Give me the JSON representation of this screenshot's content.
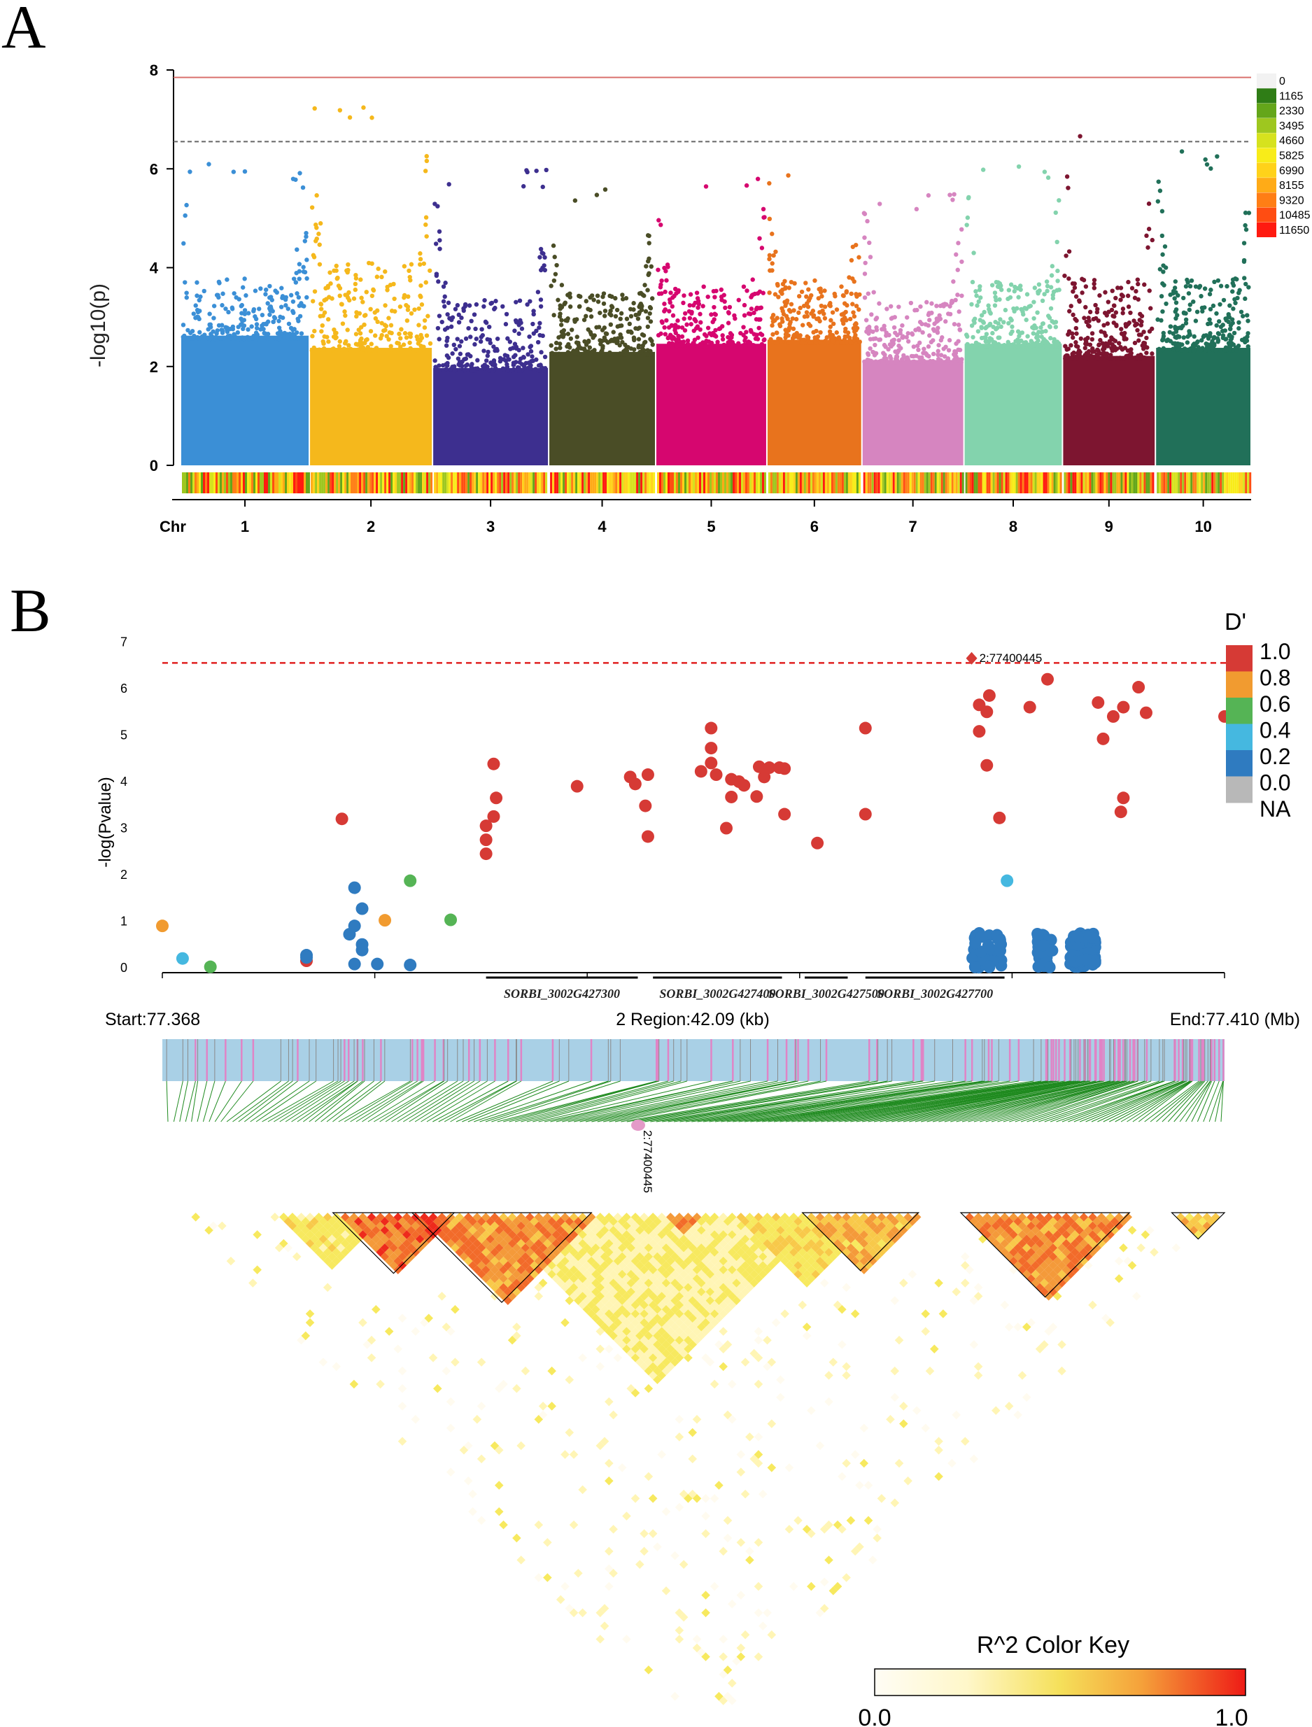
{
  "panels": {
    "a": {
      "letter": "A"
    },
    "b": {
      "letter": "B"
    }
  },
  "chart_data": [
    {
      "type": "scatter",
      "subtype": "manhattan",
      "ylabel": "-log10(p)",
      "ylim": [
        0,
        8
      ],
      "yticks": [
        "0",
        "2",
        "4",
        "6",
        "8"
      ],
      "xlabel": "Chr",
      "chromosomes": [
        {
          "name": "1",
          "color": "#3b8fd6",
          "peak": 6.1,
          "base": 3.2
        },
        {
          "name": "2",
          "color": "#f5b81c",
          "peak": 7.5,
          "base": 2.9
        },
        {
          "name": "3",
          "color": "#3d2f8f",
          "peak": 6.0,
          "base": 2.4
        },
        {
          "name": "4",
          "color": "#4a4d26",
          "peak": 5.8,
          "base": 2.8
        },
        {
          "name": "5",
          "color": "#d6066f",
          "peak": 5.9,
          "base": 3.0
        },
        {
          "name": "6",
          "color": "#e8731d",
          "peak": 6.1,
          "base": 3.1
        },
        {
          "name": "7",
          "color": "#d685c0",
          "peak": 5.6,
          "base": 2.6
        },
        {
          "name": "8",
          "color": "#83d3ad",
          "peak": 6.2,
          "base": 3.0
        },
        {
          "name": "9",
          "color": "#7d1530",
          "peak": 6.8,
          "base": 2.7
        },
        {
          "name": "10",
          "color": "#217059",
          "peak": 6.5,
          "base": 2.9
        }
      ],
      "thresholds": [
        {
          "value": 7.85,
          "color": "#d9706d",
          "style": "solid"
        },
        {
          "value": 6.55,
          "color": "#666666",
          "style": "dashed"
        }
      ],
      "density_legend": {
        "labels": [
          "0",
          "1165",
          "2330",
          "3495",
          "4660",
          "5825",
          "6990",
          "8155",
          "9320",
          "10485",
          "11650"
        ],
        "colors": [
          "#f2f2f2",
          "#2f7d16",
          "#64a61a",
          "#9ec71f",
          "#d6e21e",
          "#f8ec19",
          "#ffd21a",
          "#ffab17",
          "#ff7e15",
          "#ff4d12",
          "#ff1a10"
        ]
      }
    },
    {
      "type": "scatter",
      "subtype": "regional-association",
      "ylabel": "-log(Pvalue)",
      "ylim": [
        0,
        7
      ],
      "yticks": [
        "0",
        "1",
        "2",
        "3",
        "4",
        "5",
        "6",
        "7"
      ],
      "region_start_label": "Start:77.368",
      "region_mid_label": "2 Region:42.09 (kb)",
      "region_end_label": "End:77.410 (Mb)",
      "region_start": 77.368,
      "region_end": 77.41,
      "threshold": 6.55,
      "lead_snp": {
        "label": "2:77400445",
        "position": 77.4,
        "value": 6.65
      },
      "genes": [
        {
          "name": "SORBI_3002G427300",
          "start": 77.3808,
          "end": 77.3868
        },
        {
          "name": "SORBI_3002G427400",
          "start": 77.3874,
          "end": 77.3925
        },
        {
          "name": "SORBI_3002G427500",
          "start": 77.3934,
          "end": 77.3951
        },
        {
          "name": "SORBI_3002G427700",
          "start": 77.3958,
          "end": 77.4013
        }
      ],
      "dprime_legend": {
        "title": "D'",
        "labels": [
          "1.0",
          "0.8",
          "0.6",
          "0.4",
          "0.2",
          "0.0",
          "NA"
        ],
        "colors": [
          "#d63a35",
          "#f19b30",
          "#55b455",
          "#45b8e0",
          "#2f7bc0",
          "#b8b8b8"
        ]
      },
      "points": [
        {
          "x": 77.368,
          "y": 0.9,
          "d": 0.8
        },
        {
          "x": 77.3688,
          "y": 0.2,
          "d": 0.4
        },
        {
          "x": 77.3699,
          "y": 0.02,
          "d": 0.6
        },
        {
          "x": 77.3737,
          "y": 0.27,
          "d": 0.2
        },
        {
          "x": 77.3737,
          "y": 0.15,
          "d": 1.0
        },
        {
          "x": 77.3737,
          "y": 0.22,
          "d": 0.2
        },
        {
          "x": 77.3751,
          "y": 3.2,
          "d": 1.0
        },
        {
          "x": 77.3756,
          "y": 1.72,
          "d": 0.2
        },
        {
          "x": 77.3759,
          "y": 1.27,
          "d": 0.2
        },
        {
          "x": 77.3756,
          "y": 0.9,
          "d": 0.2
        },
        {
          "x": 77.3754,
          "y": 0.72,
          "d": 0.2
        },
        {
          "x": 77.3759,
          "y": 0.5,
          "d": 0.2
        },
        {
          "x": 77.3759,
          "y": 0.38,
          "d": 0.2
        },
        {
          "x": 77.3756,
          "y": 0.08,
          "d": 0.2
        },
        {
          "x": 77.3765,
          "y": 0.08,
          "d": 0.2
        },
        {
          "x": 77.3768,
          "y": 1.02,
          "d": 0.8
        },
        {
          "x": 77.3778,
          "y": 1.87,
          "d": 0.6
        },
        {
          "x": 77.3778,
          "y": 0.06,
          "d": 0.2
        },
        {
          "x": 77.3794,
          "y": 1.03,
          "d": 0.6
        },
        {
          "x": 77.3808,
          "y": 2.45,
          "d": 1.0
        },
        {
          "x": 77.3808,
          "y": 2.75,
          "d": 1.0
        },
        {
          "x": 77.3808,
          "y": 3.05,
          "d": 1.0
        },
        {
          "x": 77.3811,
          "y": 3.25,
          "d": 1.0
        },
        {
          "x": 77.3812,
          "y": 3.65,
          "d": 1.0
        },
        {
          "x": 77.3811,
          "y": 4.38,
          "d": 1.0
        },
        {
          "x": 77.3844,
          "y": 3.9,
          "d": 1.0
        },
        {
          "x": 77.3865,
          "y": 4.1,
          "d": 1.0
        },
        {
          "x": 77.3867,
          "y": 3.95,
          "d": 1.0
        },
        {
          "x": 77.3872,
          "y": 4.15,
          "d": 1.0
        },
        {
          "x": 77.3871,
          "y": 3.48,
          "d": 1.0
        },
        {
          "x": 77.3872,
          "y": 2.82,
          "d": 1.0
        },
        {
          "x": 77.3893,
          "y": 4.22,
          "d": 1.0
        },
        {
          "x": 77.3897,
          "y": 5.15,
          "d": 1.0
        },
        {
          "x": 77.3897,
          "y": 4.72,
          "d": 1.0
        },
        {
          "x": 77.3897,
          "y": 4.4,
          "d": 1.0
        },
        {
          "x": 77.3899,
          "y": 4.15,
          "d": 1.0
        },
        {
          "x": 77.3903,
          "y": 3.0,
          "d": 1.0
        },
        {
          "x": 77.3905,
          "y": 4.05,
          "d": 1.0
        },
        {
          "x": 77.3905,
          "y": 3.67,
          "d": 1.0
        },
        {
          "x": 77.3908,
          "y": 4.0,
          "d": 1.0
        },
        {
          "x": 77.391,
          "y": 3.92,
          "d": 1.0
        },
        {
          "x": 77.3915,
          "y": 3.68,
          "d": 1.0
        },
        {
          "x": 77.3916,
          "y": 4.32,
          "d": 1.0
        },
        {
          "x": 77.3918,
          "y": 4.1,
          "d": 1.0
        },
        {
          "x": 77.392,
          "y": 4.3,
          "d": 1.0
        },
        {
          "x": 77.3924,
          "y": 4.3,
          "d": 1.0
        },
        {
          "x": 77.3926,
          "y": 4.28,
          "d": 1.0
        },
        {
          "x": 77.3926,
          "y": 3.3,
          "d": 1.0
        },
        {
          "x": 77.3939,
          "y": 2.68,
          "d": 1.0
        },
        {
          "x": 77.3958,
          "y": 5.15,
          "d": 1.0
        },
        {
          "x": 77.3958,
          "y": 3.3,
          "d": 1.0
        },
        {
          "x": 77.4003,
          "y": 5.65,
          "d": 1.0
        },
        {
          "x": 77.4003,
          "y": 5.08,
          "d": 1.0
        },
        {
          "x": 77.4006,
          "y": 5.5,
          "d": 1.0
        },
        {
          "x": 77.4007,
          "y": 5.85,
          "d": 1.0
        },
        {
          "x": 77.4006,
          "y": 4.35,
          "d": 1.0
        },
        {
          "x": 77.4011,
          "y": 3.22,
          "d": 1.0
        },
        {
          "x": 77.4014,
          "y": 1.87,
          "d": 0.4
        },
        {
          "x": 77.4023,
          "y": 5.6,
          "d": 1.0
        },
        {
          "x": 77.403,
          "y": 6.2,
          "d": 1.0
        },
        {
          "x": 77.405,
          "y": 5.7,
          "d": 1.0
        },
        {
          "x": 77.4052,
          "y": 4.92,
          "d": 1.0
        },
        {
          "x": 77.4056,
          "y": 5.4,
          "d": 1.0
        },
        {
          "x": 77.406,
          "y": 5.6,
          "d": 1.0
        },
        {
          "x": 77.4066,
          "y": 6.03,
          "d": 1.0
        },
        {
          "x": 77.406,
          "y": 3.65,
          "d": 1.0
        },
        {
          "x": 77.4059,
          "y": 3.35,
          "d": 1.0
        },
        {
          "x": 77.4069,
          "y": 5.48,
          "d": 1.0
        },
        {
          "x": 77.41,
          "y": 5.4,
          "d": 1.0
        }
      ],
      "r2_legend": {
        "title": "R^2 Color Key",
        "min_label": "0.0",
        "max_label": "1.0",
        "colors": [
          "#fffbef",
          "#fff5b5",
          "#f7e95f",
          "#f8c94a",
          "#f49a3a",
          "#f26b2a",
          "#ee2a1c"
        ]
      },
      "ld_blocks": [
        {
          "from": 0.155,
          "to": 0.27,
          "intensity": 0.95
        },
        {
          "from": 0.23,
          "to": 0.4,
          "intensity": 0.85
        },
        {
          "from": 0.46,
          "to": 0.5,
          "intensity": 0.8
        },
        {
          "from": 0.6,
          "to": 0.71,
          "intensity": 0.7
        },
        {
          "from": 0.75,
          "to": 0.91,
          "intensity": 0.85
        },
        {
          "from": 0.95,
          "to": 1.0,
          "intensity": 0.6
        },
        {
          "from": 0.53,
          "to": 0.67,
          "intensity": 0.5
        },
        {
          "from": 0.1,
          "to": 0.2,
          "intensity": 0.45
        },
        {
          "from": 0.3,
          "to": 0.62,
          "intensity": 0.35
        }
      ]
    }
  ]
}
